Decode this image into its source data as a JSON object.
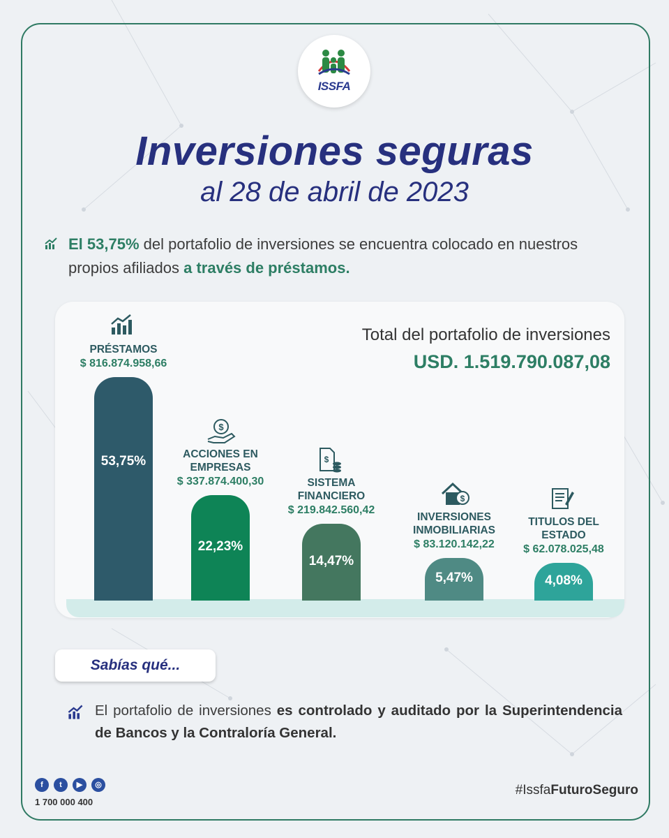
{
  "header": {
    "logo_text": "ISSFA",
    "title": "Inversiones seguras",
    "subtitle": "al 28 de abril de 2023"
  },
  "intro": {
    "part1_hl": "El 53,75%",
    "part2": " del portafolio de inversiones se encuentra colocado en nuestros propios afiliados ",
    "part3_hl": "a través de préstamos."
  },
  "total": {
    "label": "Total del portafolio de inversiones",
    "value": "USD. 1.519.790.087,08"
  },
  "chart_data": {
    "type": "bar",
    "categories": [
      "PRÉSTAMOS",
      "ACCIONES EN EMPRESAS",
      "SISTEMA FINANCIERO",
      "INVERSIONES INMOBILIARIAS",
      "TITULOS DEL ESTADO"
    ],
    "values": [
      53.75,
      22.23,
      14.47,
      5.47,
      4.08
    ],
    "amounts": [
      "$ 816.874.958,66",
      "$ 337.874.400,30",
      "$ 219.842.560,42",
      "$ 83.120.142,22",
      "$ 62.078.025,48"
    ],
    "value_labels": [
      "53,75%",
      "22,23%",
      "14,47%",
      "5,47%",
      "4,08%"
    ],
    "colors": [
      "#2e5a6a",
      "#0e8456",
      "#44775f",
      "#4f8a84",
      "#2ea49a"
    ],
    "icons": [
      "growth-chart-icon",
      "hand-coin-icon",
      "document-coins-icon",
      "house-dollar-icon",
      "certificate-icon"
    ],
    "title": "",
    "xlabel": "",
    "ylabel": "",
    "ylim": [
      0,
      53.75
    ]
  },
  "sabias": {
    "label": "Sabías qué..."
  },
  "note": {
    "part1": "El portafolio de inversiones ",
    "part2_bold": "es controlado y auditado por la Superintendencia de Bancos y la Contraloría General."
  },
  "footer": {
    "social_icons": [
      "facebook-icon",
      "twitter-icon",
      "youtube-icon",
      "instagram-icon"
    ],
    "phone": "1 700 000 400",
    "hashtag_prefix": "#Issfa",
    "hashtag_bold": "FuturoSeguro"
  }
}
